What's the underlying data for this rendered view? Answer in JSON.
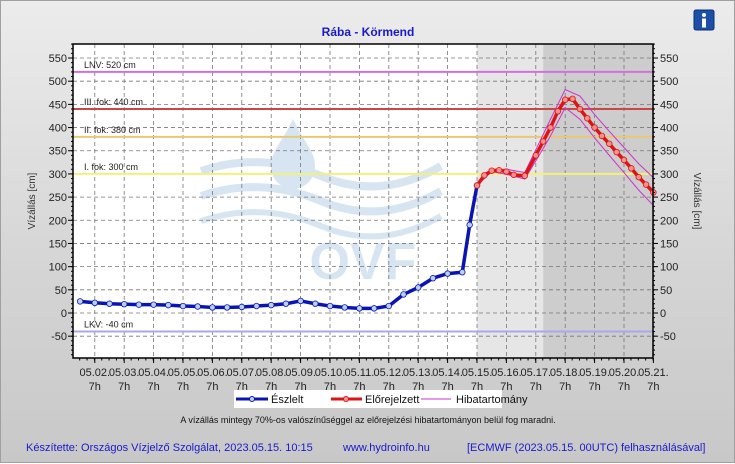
{
  "info_icon": "info-icon",
  "chart_data": {
    "type": "line",
    "title": "Rába - Körmend",
    "ylabel": "Vízállás [cm]",
    "ylabel_right": "Vízállás [cm]",
    "ylim": [
      -95,
      580
    ],
    "yticks": [
      -50,
      0,
      50,
      100,
      150,
      200,
      250,
      300,
      350,
      400,
      450,
      500,
      550
    ],
    "xticks": [
      "05.02.",
      "05.03.",
      "05.04.",
      "05.05.",
      "05.06.",
      "05.07.",
      "05.08.",
      "05.09.",
      "05.10.",
      "05.11.",
      "05.12.",
      "05.13.",
      "05.14.",
      "05.15.",
      "05.16.",
      "05.17.",
      "05.18.",
      "05.19.",
      "05.20.",
      "05.21."
    ],
    "xtick_hour": "7h",
    "grid": true,
    "legend_position": "bottom",
    "shaded_regions": [
      {
        "from": "05.15 07",
        "to": "05.17 13",
        "color": "#e6e6e6"
      },
      {
        "from": "05.17 13",
        "to": "05.21 07",
        "color": "#cdcdcd"
      }
    ],
    "levels": [
      {
        "label": "LNV: 520 cm",
        "value": 520,
        "color": "#d070dc"
      },
      {
        "label": "III. fok: 440 cm",
        "value": 440,
        "color": "#c84848"
      },
      {
        "label": "II. fok: 380 cm",
        "value": 380,
        "color": "#e8c878"
      },
      {
        "label": "I. fok: 300 cm",
        "value": 300,
        "color": "#f4f07a"
      },
      {
        "label": "LKV: -40 cm",
        "value": -40,
        "color": "#a8a8ec"
      }
    ],
    "series": [
      {
        "name": "Észlelt",
        "color": "#0a14b4",
        "x": [
          "05.01 19",
          "05.02 07",
          "05.02 19",
          "05.03 07",
          "05.03 19",
          "05.04 07",
          "05.04 19",
          "05.05 07",
          "05.05 19",
          "05.06 07",
          "05.06 19",
          "05.07 07",
          "05.07 19",
          "05.08 07",
          "05.08 19",
          "05.09 07",
          "05.09 19",
          "05.10 07",
          "05.10 19",
          "05.11 07",
          "05.11 19",
          "05.12 07",
          "05.12 19",
          "05.13 07",
          "05.13 19",
          "05.14 07",
          "05.14 19",
          "05.15 01",
          "05.15 07"
        ],
        "y": [
          25,
          22,
          20,
          19,
          18,
          18,
          17,
          15,
          14,
          12,
          12,
          13,
          15,
          17,
          20,
          26,
          20,
          15,
          12,
          10,
          10,
          15,
          40,
          55,
          75,
          85,
          88,
          190,
          275
        ]
      },
      {
        "name": "Előrejelzett",
        "color": "#dc1414",
        "x": [
          "05.15 07",
          "05.15 13",
          "05.15 19",
          "05.16 01",
          "05.16 07",
          "05.16 13",
          "05.16 22",
          "05.17 07",
          "05.17 13",
          "05.17 19",
          "05.18 01",
          "05.18 07",
          "05.18 13",
          "05.18 19",
          "05.19 01",
          "05.19 07",
          "05.19 13",
          "05.19 19",
          "05.20 01",
          "05.20 07",
          "05.20 13",
          "05.20 19",
          "05.21 01",
          "05.21 07"
        ],
        "y": [
          275,
          297,
          307,
          308,
          305,
          298,
          296,
          340,
          370,
          400,
          435,
          460,
          462,
          440,
          420,
          400,
          382,
          365,
          347,
          330,
          312,
          293,
          277,
          260
        ]
      },
      {
        "name": "Hibatartomány",
        "color": "#cc33cc",
        "x": [
          "05.15 07",
          "05.15 19",
          "05.16 07",
          "05.16 22",
          "05.17 07",
          "05.17 19",
          "05.18 07",
          "05.18 19",
          "05.19 07",
          "05.19 19",
          "05.20 07",
          "05.20 19",
          "05.21 07"
        ],
        "upper": [
          275,
          309,
          310,
          303,
          352,
          418,
          482,
          468,
          428,
          392,
          357,
          322,
          292
        ],
        "lower": [
          275,
          305,
          299,
          289,
          328,
          382,
          443,
          418,
          378,
          340,
          303,
          265,
          232
        ]
      }
    ],
    "note": "A vízállás mintegy 70%-os valószínűséggel az előrejelzési hibatartományon belül fog maradni."
  },
  "footer": {
    "author": "Készítette: Országos Vízjelző Szolgálat, 2023.05.15. 10:15",
    "website": "www.hydroinfo.hu",
    "source": "[ECMWF (2023.05.15. 00UTC) felhasználásával]"
  },
  "watermark": "OVF"
}
